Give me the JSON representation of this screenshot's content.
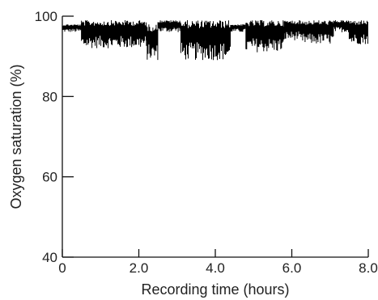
{
  "chart_data": {
    "type": "line",
    "title": "",
    "xlabel": "Recording time (hours)",
    "ylabel": "Oxygen saturation (%)",
    "xlim": [
      0,
      8.0
    ],
    "ylim": [
      40,
      100
    ],
    "grid": false,
    "x_ticks": [
      0,
      2.0,
      4.0,
      6.0,
      8.0
    ],
    "x_tick_labels": [
      "0",
      "2.0",
      "4.0",
      "6.0",
      "8.0"
    ],
    "y_ticks": [
      40,
      60,
      80,
      100
    ],
    "y_tick_labels": [
      "40",
      "60",
      "80",
      "100"
    ],
    "series": [
      {
        "color": "#000000",
        "segments": [
          {
            "x_start": 0.0,
            "x_end": 0.5,
            "low": 96,
            "high": 98
          },
          {
            "x_start": 0.5,
            "x_end": 2.2,
            "low": 92,
            "high": 99
          },
          {
            "x_start": 2.2,
            "x_end": 2.5,
            "low": 89,
            "high": 98
          },
          {
            "x_start": 2.5,
            "x_end": 3.1,
            "low": 96,
            "high": 99
          },
          {
            "x_start": 3.1,
            "x_end": 4.4,
            "low": 89,
            "high": 99
          },
          {
            "x_start": 4.4,
            "x_end": 4.8,
            "low": 96,
            "high": 98
          },
          {
            "x_start": 4.8,
            "x_end": 5.8,
            "low": 91,
            "high": 99
          },
          {
            "x_start": 5.8,
            "x_end": 6.2,
            "low": 94,
            "high": 99
          },
          {
            "x_start": 6.2,
            "x_end": 7.1,
            "low": 93,
            "high": 99
          },
          {
            "x_start": 7.1,
            "x_end": 7.5,
            "low": 96,
            "high": 99
          },
          {
            "x_start": 7.5,
            "x_end": 8.0,
            "low": 93,
            "high": 99
          }
        ]
      }
    ]
  }
}
